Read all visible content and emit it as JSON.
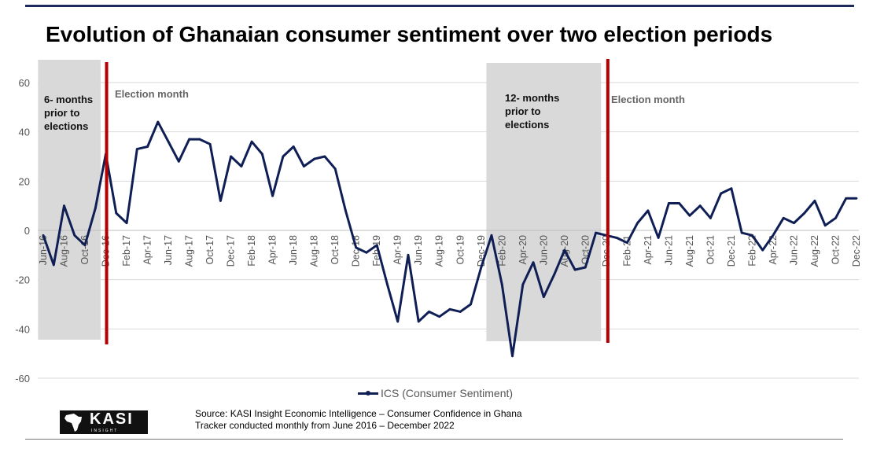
{
  "title": "Evolution of Ghanaian consumer sentiment over two election periods",
  "colors": {
    "line": "#0f1f55",
    "election": "#b40000",
    "shade": "#d9d9d9",
    "grid": "#d9d9d9"
  },
  "annotations": {
    "shade1_label": [
      "6- months",
      "prior to",
      "elections"
    ],
    "shade2_label": [
      "12- months",
      "prior to",
      "elections"
    ],
    "election1_label": "Election month",
    "election2_label": "Election month"
  },
  "legend": {
    "label": "ICS (Consumer Sentiment)"
  },
  "source": {
    "line1": "Source: KASI Insight Economic Intelligence – Consumer Confidence in Ghana",
    "line2": "Tracker conducted monthly from June 2016 – December 2022"
  },
  "logo": {
    "text": "KASI",
    "sub": "INSIGHT"
  },
  "chart_data": {
    "type": "line",
    "title": "Evolution of Ghanaian consumer sentiment over two election periods",
    "xlabel": "",
    "ylabel": "",
    "ylim": [
      -60,
      60
    ],
    "yticks": [
      -60,
      -40,
      -20,
      0,
      20,
      40,
      60
    ],
    "x_tick_labels": [
      "Jun-16",
      "Aug-16",
      "Oct-16",
      "Dec-16",
      "Feb-17",
      "Apr-17",
      "Jun-17",
      "Aug-17",
      "Oct-17",
      "Dec-17",
      "Feb-18",
      "Apr-18",
      "Jun-18",
      "Aug-18",
      "Oct-18",
      "Dec-18",
      "Feb-19",
      "Apr-19",
      "Jun-19",
      "Aug-19",
      "Oct-19",
      "Dec-19",
      "Feb-20",
      "Apr-20",
      "Jun-20",
      "Aug-20",
      "Oct-20",
      "Dec-20",
      "Feb-21",
      "Apr-21",
      "Jun-21",
      "Aug-21",
      "Oct-21",
      "Dec-21",
      "Feb-22",
      "Apr-22",
      "Jun-22",
      "Aug-22",
      "Oct-22",
      "Dec-22"
    ],
    "shaded_periods": [
      {
        "label": "6- months prior to elections",
        "start_index": -0.5,
        "end_index": 5.5
      },
      {
        "label": "12- months prior to elections",
        "start_index": 42.5,
        "end_index": 53.5
      }
    ],
    "election_months": [
      {
        "label": "Election month",
        "index": 6
      },
      {
        "label": "Election month",
        "index": 54
      }
    ],
    "series": [
      {
        "name": "ICS (Consumer Sentiment)",
        "values": [
          -2,
          -14,
          10,
          -2,
          -6,
          9,
          31,
          7,
          3,
          33,
          34,
          44,
          36,
          28,
          37,
          37,
          35,
          12,
          30,
          26,
          36,
          31,
          14,
          30,
          34,
          26,
          29,
          30,
          25,
          8,
          -7,
          -9,
          -6,
          -22,
          -37,
          -10,
          -37,
          -33,
          -35,
          -32,
          -33,
          -30,
          -15,
          -2,
          -22,
          -51,
          -22,
          -13,
          -27,
          -18,
          -8,
          -16,
          -15,
          -1,
          -2,
          -3,
          -5,
          3,
          8,
          -3,
          11,
          11,
          6,
          10,
          5,
          15,
          17,
          -1,
          -2,
          -8,
          -2,
          5,
          3,
          7,
          12,
          2,
          5,
          13,
          13
        ]
      }
    ]
  }
}
